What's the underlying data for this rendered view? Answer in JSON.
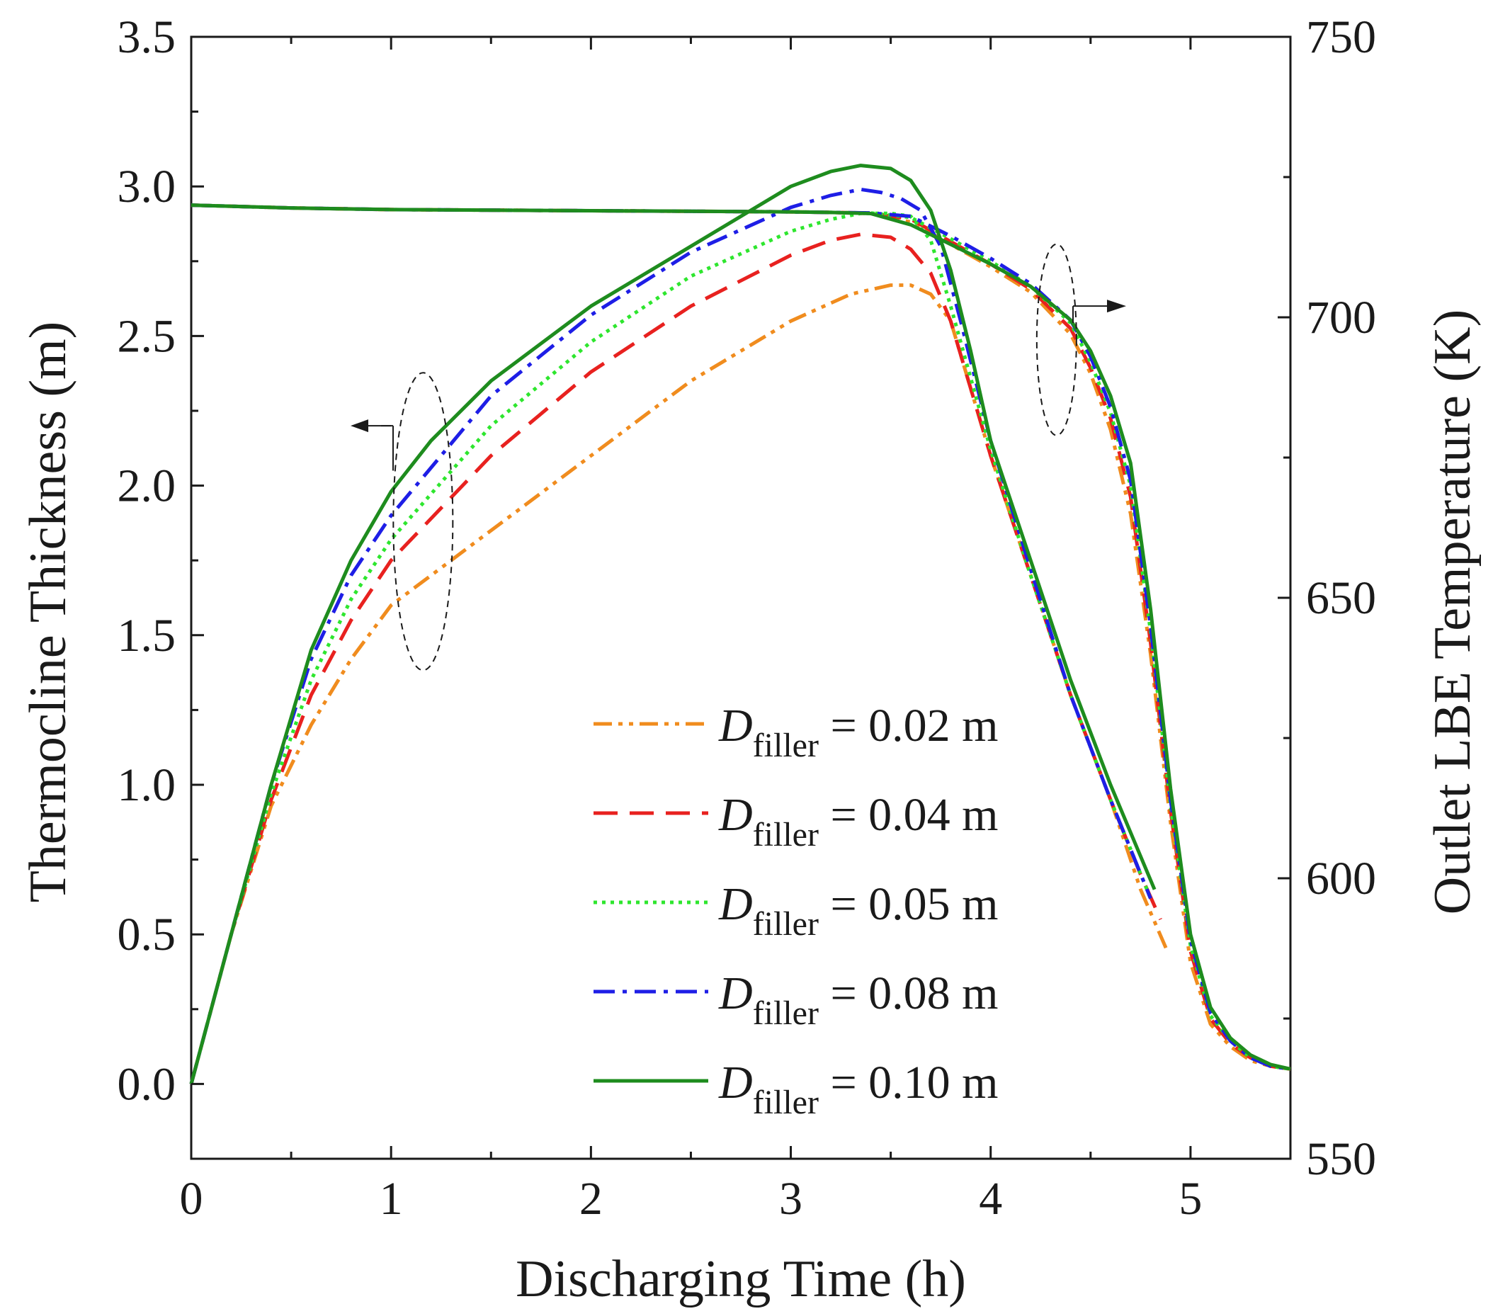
{
  "chart_data": {
    "type": "line",
    "xlabel": "Discharging Time (h)",
    "ylabel_left": "Thermocline Thickness (m)",
    "ylabel_right": "Outlet LBE Temperature (K)",
    "xlim": [
      0,
      5.5
    ],
    "ylim_left": [
      -0.25,
      3.5
    ],
    "ylim_right": [
      550,
      750
    ],
    "x_ticks": [
      0,
      1,
      2,
      3,
      4,
      5
    ],
    "y_left_ticks": [
      0.0,
      0.5,
      1.0,
      1.5,
      2.0,
      2.5,
      3.0,
      3.5
    ],
    "y_left_tick_labels": [
      "0.0",
      "0.5",
      "1.0",
      "1.5",
      "2.0",
      "2.5",
      "3.0",
      "3.5"
    ],
    "y_right_ticks": [
      550,
      600,
      650,
      700,
      750
    ],
    "grid": false,
    "legend_position": "lower-right",
    "series": [
      {
        "name": "D filler = 0.02 m",
        "legend_var": "D",
        "legend_sub": "filler",
        "legend_value": " = 0.02 m",
        "color": "#f08c1e",
        "dash": "dashdotdot",
        "thickness": {
          "x": [
            0,
            0.2,
            0.4,
            0.6,
            0.8,
            1.0,
            1.5,
            2.0,
            2.5,
            3.0,
            3.3,
            3.5,
            3.6,
            3.7,
            3.8,
            4.0,
            4.2,
            4.4,
            4.6,
            4.75,
            4.88
          ],
          "y": [
            0.0,
            0.5,
            0.93,
            1.2,
            1.42,
            1.6,
            1.85,
            2.1,
            2.35,
            2.55,
            2.64,
            2.67,
            2.67,
            2.64,
            2.55,
            2.1,
            1.7,
            1.3,
            0.95,
            0.65,
            0.45
          ]
        },
        "temperature": {
          "x": [
            0,
            0.5,
            1.0,
            2.0,
            3.0,
            3.2,
            3.4,
            3.6,
            3.8,
            4.0,
            4.2,
            4.4,
            4.5,
            4.6,
            4.7,
            4.8,
            4.9,
            5.0,
            5.1,
            5.2,
            5.3,
            5.4,
            5.5
          ],
          "y": [
            720,
            719.5,
            719.2,
            719,
            718.8,
            718.7,
            718.5,
            717,
            713,
            709,
            704.5,
            697,
            690,
            680,
            665,
            640,
            610,
            585,
            574,
            570,
            567.5,
            566.5,
            566
          ]
        }
      },
      {
        "name": "D filler = 0.04 m",
        "legend_var": "D",
        "legend_sub": "filler",
        "legend_value": " = 0.04 m",
        "color": "#e8211f",
        "dash": "dash",
        "thickness": {
          "x": [
            0,
            0.2,
            0.4,
            0.6,
            0.8,
            1.0,
            1.5,
            2.0,
            2.5,
            3.0,
            3.2,
            3.35,
            3.5,
            3.6,
            3.7,
            3.8,
            4.0,
            4.2,
            4.4,
            4.6,
            4.75,
            4.85
          ],
          "y": [
            0.0,
            0.5,
            0.95,
            1.3,
            1.55,
            1.75,
            2.1,
            2.38,
            2.6,
            2.77,
            2.82,
            2.84,
            2.83,
            2.79,
            2.71,
            2.55,
            2.1,
            1.7,
            1.3,
            0.95,
            0.7,
            0.55
          ]
        },
        "temperature": {
          "x": [
            0,
            0.5,
            1.0,
            2.0,
            3.0,
            3.2,
            3.4,
            3.6,
            3.8,
            4.0,
            4.2,
            4.4,
            4.5,
            4.6,
            4.7,
            4.8,
            4.9,
            5.0,
            5.1,
            5.2,
            5.3,
            5.4,
            5.5
          ],
          "y": [
            720,
            719.5,
            719.2,
            719,
            718.8,
            718.7,
            718.6,
            717.5,
            713.5,
            709.5,
            705,
            698,
            691,
            682,
            668,
            642,
            612,
            587,
            575,
            570.5,
            568,
            566.5,
            566
          ]
        }
      },
      {
        "name": "D filler = 0.05 m",
        "legend_var": "D",
        "legend_sub": "filler",
        "legend_value": " = 0.05 m",
        "color": "#2ee62e",
        "dash": "dot",
        "thickness": {
          "x": [
            0,
            0.2,
            0.4,
            0.6,
            0.8,
            1.0,
            1.5,
            2.0,
            2.5,
            3.0,
            3.2,
            3.35,
            3.5,
            3.6,
            3.7,
            3.8,
            4.0,
            4.2,
            4.4,
            4.6,
            4.8
          ],
          "y": [
            0.0,
            0.5,
            0.97,
            1.35,
            1.62,
            1.82,
            2.2,
            2.48,
            2.7,
            2.85,
            2.89,
            2.91,
            2.91,
            2.9,
            2.82,
            2.6,
            2.12,
            1.7,
            1.3,
            0.95,
            0.62
          ]
        },
        "temperature": {
          "x": [
            0,
            0.5,
            1.0,
            2.0,
            3.0,
            3.2,
            3.4,
            3.6,
            3.8,
            4.0,
            4.2,
            4.4,
            4.5,
            4.6,
            4.7,
            4.8,
            4.9,
            5.0,
            5.1,
            5.2,
            5.3,
            5.4,
            5.5
          ],
          "y": [
            720,
            719.5,
            719.2,
            719,
            718.8,
            718.7,
            718.6,
            717.8,
            714,
            710,
            705.5,
            699,
            692,
            683,
            670,
            644,
            613,
            588,
            575.5,
            571,
            568,
            566.5,
            566
          ]
        }
      },
      {
        "name": "D filler = 0.08 m",
        "legend_var": "D",
        "legend_sub": "filler",
        "legend_value": " = 0.08 m",
        "color": "#1e1ee6",
        "dash": "dashdot",
        "thickness": {
          "x": [
            0,
            0.2,
            0.4,
            0.6,
            0.8,
            1.0,
            1.5,
            2.0,
            2.5,
            3.0,
            3.2,
            3.35,
            3.45,
            3.55,
            3.65,
            3.75,
            3.85,
            4.0,
            4.2,
            4.4,
            4.6,
            4.8
          ],
          "y": [
            0.0,
            0.5,
            1.0,
            1.42,
            1.7,
            1.9,
            2.3,
            2.57,
            2.78,
            2.93,
            2.97,
            2.99,
            2.98,
            2.96,
            2.92,
            2.8,
            2.55,
            2.15,
            1.72,
            1.3,
            0.95,
            0.62
          ]
        },
        "temperature": {
          "x": [
            0,
            0.5,
            1.0,
            2.0,
            3.0,
            3.2,
            3.4,
            3.6,
            3.8,
            4.0,
            4.2,
            4.4,
            4.5,
            4.6,
            4.7,
            4.8,
            4.9,
            5.0,
            5.1,
            5.2,
            5.3,
            5.4,
            5.5
          ],
          "y": [
            720,
            719.5,
            719.2,
            719,
            718.8,
            718.7,
            718.6,
            718,
            714.5,
            710.5,
            706,
            699.5,
            693,
            684,
            671,
            645,
            614,
            589,
            576,
            571,
            568,
            566.5,
            566
          ]
        }
      },
      {
        "name": "D filler = 0.10 m",
        "legend_var": "D",
        "legend_sub": "filler",
        "legend_value": " = 0.10 m",
        "color": "#1e8c1e",
        "dash": "solid",
        "thickness": {
          "x": [
            0,
            0.2,
            0.4,
            0.6,
            0.8,
            1.0,
            1.2,
            1.5,
            2.0,
            2.5,
            3.0,
            3.2,
            3.35,
            3.5,
            3.6,
            3.7,
            3.8,
            3.9,
            4.0,
            4.2,
            4.4,
            4.6,
            4.82
          ],
          "y": [
            0.0,
            0.5,
            1.0,
            1.45,
            1.75,
            1.98,
            2.15,
            2.35,
            2.6,
            2.8,
            3.0,
            3.05,
            3.07,
            3.06,
            3.02,
            2.92,
            2.72,
            2.45,
            2.15,
            1.75,
            1.35,
            1.0,
            0.65
          ]
        },
        "temperature": {
          "x": [
            0,
            0.5,
            1.0,
            2.0,
            3.0,
            3.2,
            3.4,
            3.6,
            3.8,
            4.0,
            4.2,
            4.4,
            4.5,
            4.6,
            4.7,
            4.8,
            4.9,
            5.0,
            5.1,
            5.2,
            5.3,
            5.4,
            5.5
          ],
          "y": [
            720,
            719.5,
            719.2,
            719,
            718.8,
            718.7,
            718.5,
            716.5,
            713,
            709.5,
            705.5,
            699.5,
            694,
            686,
            674,
            648,
            616,
            590,
            577,
            571.5,
            568.5,
            566.8,
            566
          ]
        }
      }
    ]
  }
}
